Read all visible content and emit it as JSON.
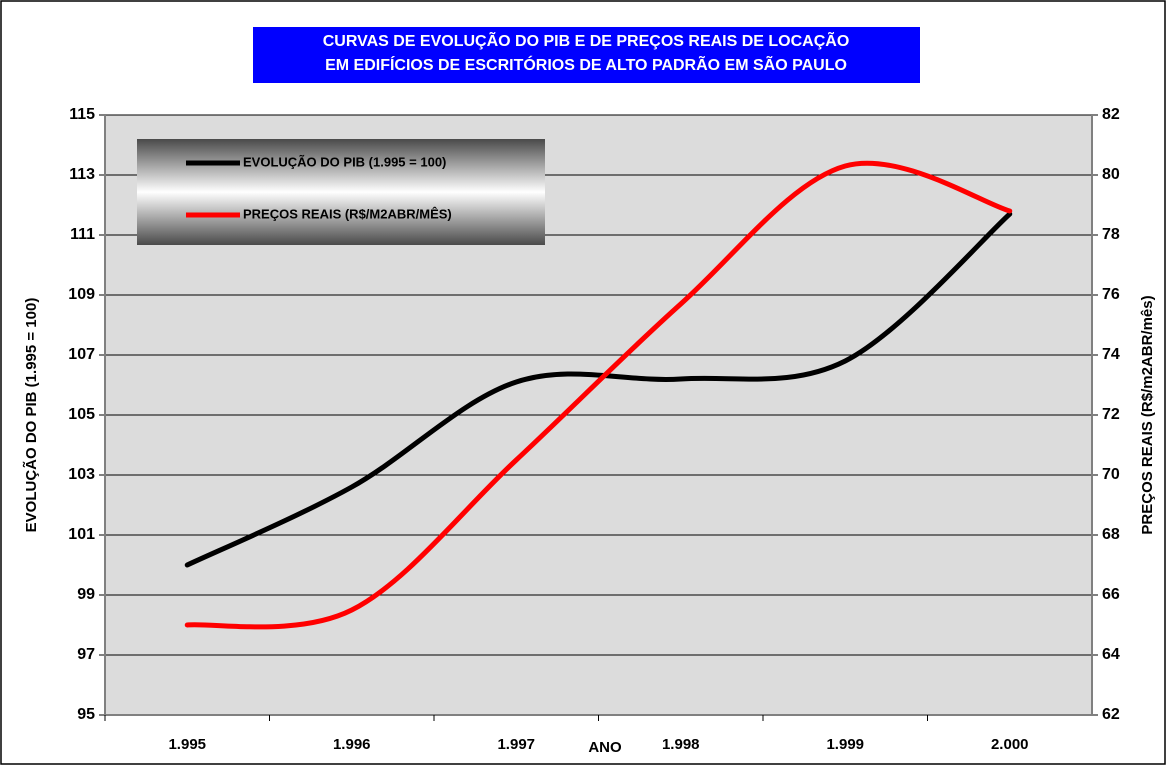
{
  "chart_data": {
    "type": "line",
    "title": [
      "CURVAS DE EVOLUÇÃO DO PIB E DE PREÇOS REAIS DE LOCAÇÃO",
      "EM EDIFÍCIOS DE ESCRITÓRIOS DE ALTO PADRÃO EM SÃO PAULO"
    ],
    "x_label": "ANO",
    "y_label": "EVOLUÇÃO DO PIB (1.995 = 100)",
    "y2_label": "PREÇOS REAIS (R$/m2ABR/mês)",
    "categories": [
      "1.995",
      "1.996",
      "1.997",
      "1.998",
      "1.999",
      "2.000"
    ],
    "series": [
      {
        "name": "EVOLUÇÃO DO PIB (1.995 = 100)",
        "color": "#000000",
        "values": [
          100,
          102.6,
          106.1,
          106.2,
          106.8,
          111.7
        ]
      },
      {
        "name": "PREÇOS REAIS (R$/M2ABR/MÊS)",
        "color": "#ff0000",
        "axis": "y2",
        "values": [
          65,
          65.5,
          70.5,
          75.7,
          80.3,
          78.8
        ]
      }
    ],
    "ylim": [
      95,
      115
    ],
    "yticks": [
      95,
      97,
      99,
      101,
      103,
      105,
      107,
      109,
      111,
      113,
      115
    ],
    "y2lim": [
      62,
      82
    ],
    "y2ticks": [
      62,
      64,
      66,
      68,
      70,
      72,
      74,
      76,
      78,
      80,
      82
    ],
    "grid": true,
    "legend": "upper left"
  }
}
